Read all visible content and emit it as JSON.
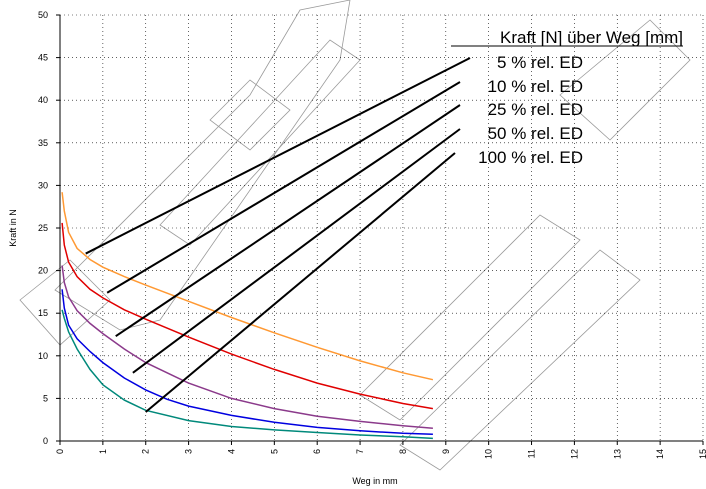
{
  "chart_data": {
    "type": "line",
    "xlabel": "Weg in mm",
    "ylabel": "Kraft in N",
    "xlim": [
      0,
      15
    ],
    "ylim": [
      0,
      50
    ],
    "xticks": [
      0,
      1,
      2,
      3,
      4,
      5,
      6,
      7,
      8,
      9,
      10,
      11,
      12,
      13,
      14,
      15
    ],
    "yticks": [
      0,
      5,
      10,
      15,
      20,
      25,
      30,
      35,
      40,
      45,
      50
    ],
    "grid": true,
    "legend_title": "Kraft [N] über Weg [mm]",
    "legend_placement": "top-right",
    "series": [
      {
        "name": "5 % rel. ED",
        "color": "#ff9933",
        "points": [
          [
            0.05,
            29.2
          ],
          [
            0.1,
            27.0
          ],
          [
            0.2,
            24.5
          ],
          [
            0.4,
            22.6
          ],
          [
            0.7,
            21.3
          ],
          [
            1.0,
            20.4
          ],
          [
            1.5,
            19.3
          ],
          [
            2.0,
            18.3
          ],
          [
            3.0,
            16.4
          ],
          [
            4.0,
            14.5
          ],
          [
            5.0,
            12.7
          ],
          [
            6.0,
            11.0
          ],
          [
            7.0,
            9.4
          ],
          [
            8.0,
            8.0
          ],
          [
            8.7,
            7.2
          ]
        ]
      },
      {
        "name": "10 % rel. ED",
        "color": "#e00000",
        "points": [
          [
            0.05,
            25.6
          ],
          [
            0.1,
            23.0
          ],
          [
            0.2,
            21.0
          ],
          [
            0.4,
            19.3
          ],
          [
            0.7,
            17.8
          ],
          [
            1.0,
            16.8
          ],
          [
            1.5,
            15.4
          ],
          [
            2.0,
            14.3
          ],
          [
            3.0,
            12.2
          ],
          [
            4.0,
            10.2
          ],
          [
            5.0,
            8.4
          ],
          [
            6.0,
            6.8
          ],
          [
            7.0,
            5.5
          ],
          [
            8.0,
            4.4
          ],
          [
            8.7,
            3.8
          ]
        ]
      },
      {
        "name": "25 % rel. ED",
        "color": "#8b3a8b",
        "points": [
          [
            0.05,
            20.6
          ],
          [
            0.1,
            18.6
          ],
          [
            0.2,
            16.9
          ],
          [
            0.4,
            15.3
          ],
          [
            0.7,
            13.8
          ],
          [
            1.0,
            12.6
          ],
          [
            1.5,
            10.8
          ],
          [
            2.0,
            9.2
          ],
          [
            3.0,
            6.8
          ],
          [
            4.0,
            5.0
          ],
          [
            5.0,
            3.8
          ],
          [
            6.0,
            2.9
          ],
          [
            7.0,
            2.3
          ],
          [
            8.0,
            1.8
          ],
          [
            8.7,
            1.5
          ]
        ]
      },
      {
        "name": "50 % rel. ED",
        "color": "#0000e0",
        "points": [
          [
            0.05,
            17.8
          ],
          [
            0.1,
            15.6
          ],
          [
            0.2,
            13.6
          ],
          [
            0.4,
            12.0
          ],
          [
            0.7,
            10.5
          ],
          [
            1.0,
            9.2
          ],
          [
            1.5,
            7.4
          ],
          [
            2.0,
            6.0
          ],
          [
            2.5,
            4.9
          ],
          [
            3.0,
            4.1
          ],
          [
            4.0,
            3.0
          ],
          [
            5.0,
            2.2
          ],
          [
            6.0,
            1.6
          ],
          [
            7.0,
            1.2
          ],
          [
            8.0,
            0.9
          ],
          [
            8.7,
            0.8
          ]
        ]
      },
      {
        "name": "100 % rel. ED",
        "color": "#00897b",
        "points": [
          [
            0.05,
            15.4
          ],
          [
            0.1,
            14.4
          ],
          [
            0.2,
            12.8
          ],
          [
            0.4,
            10.8
          ],
          [
            0.7,
            8.4
          ],
          [
            1.0,
            6.6
          ],
          [
            1.5,
            4.8
          ],
          [
            2.0,
            3.6
          ],
          [
            3.0,
            2.4
          ],
          [
            4.0,
            1.7
          ],
          [
            5.0,
            1.3
          ],
          [
            6.0,
            1.0
          ],
          [
            7.0,
            0.7
          ],
          [
            8.0,
            0.5
          ],
          [
            8.7,
            0.3
          ]
        ]
      }
    ],
    "annotations": [
      {
        "label": "5 % rel. ED",
        "target": [
          0.6,
          22.0
        ]
      },
      {
        "label": "10 % rel. ED",
        "target": [
          1.1,
          17.4
        ]
      },
      {
        "label": "25 % rel. ED",
        "target": [
          1.3,
          12.3
        ]
      },
      {
        "label": "50 % rel. ED",
        "target": [
          1.7,
          8.0
        ]
      },
      {
        "label": "100 % rel. ED",
        "target": [
          2.0,
          3.4
        ]
      }
    ]
  }
}
